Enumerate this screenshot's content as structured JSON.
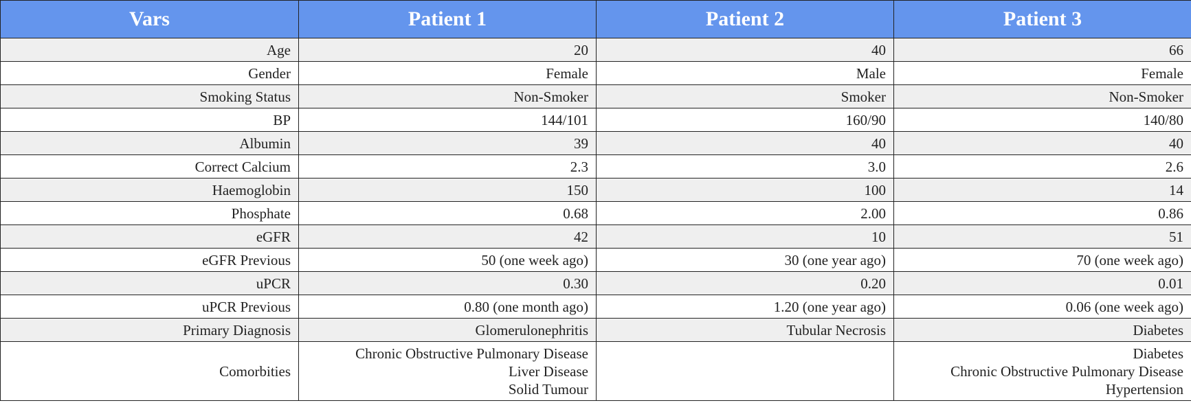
{
  "table": {
    "headers": [
      "Vars",
      "Patient 1",
      "Patient 2",
      "Patient 3"
    ],
    "rows": [
      {
        "label": "Age",
        "values": [
          "20",
          "40",
          "66"
        ]
      },
      {
        "label": "Gender",
        "values": [
          "Female",
          "Male",
          "Female"
        ]
      },
      {
        "label": "Smoking Status",
        "values": [
          "Non-Smoker",
          "Smoker",
          "Non-Smoker"
        ]
      },
      {
        "label": "BP",
        "values": [
          "144/101",
          "160/90",
          "140/80"
        ]
      },
      {
        "label": "Albumin",
        "values": [
          "39",
          "40",
          "40"
        ]
      },
      {
        "label": "Correct Calcium",
        "values": [
          "2.3",
          "3.0",
          "2.6"
        ]
      },
      {
        "label": "Haemoglobin",
        "values": [
          "150",
          "100",
          "14"
        ]
      },
      {
        "label": "Phosphate",
        "values": [
          "0.68",
          "2.00",
          "0.86"
        ]
      },
      {
        "label": "eGFR",
        "values": [
          "42",
          "10",
          "51"
        ]
      },
      {
        "label": "eGFR Previous",
        "values": [
          "50 (one week ago)",
          "30 (one year ago)",
          "70 (one week ago)"
        ]
      },
      {
        "label": "uPCR",
        "values": [
          "0.30",
          "0.20",
          "0.01"
        ]
      },
      {
        "label": "uPCR Previous",
        "values": [
          "0.80 (one month ago)",
          "1.20 (one year ago)",
          "0.06 (one week ago)"
        ]
      },
      {
        "label": "Primary Diagnosis",
        "values": [
          "Glomerulonephritis",
          "Tubular Necrosis",
          "Diabetes"
        ]
      }
    ],
    "comorbidities": {
      "label": "Comorbities",
      "patient_1": [
        "Chronic Obstructive Pulmonary Disease",
        "Liver Disease",
        "Solid Tumour"
      ],
      "patient_2": [],
      "patient_3": [
        "Diabetes",
        "Chronic Obstructive Pulmonary Disease",
        "Hypertension"
      ]
    }
  }
}
